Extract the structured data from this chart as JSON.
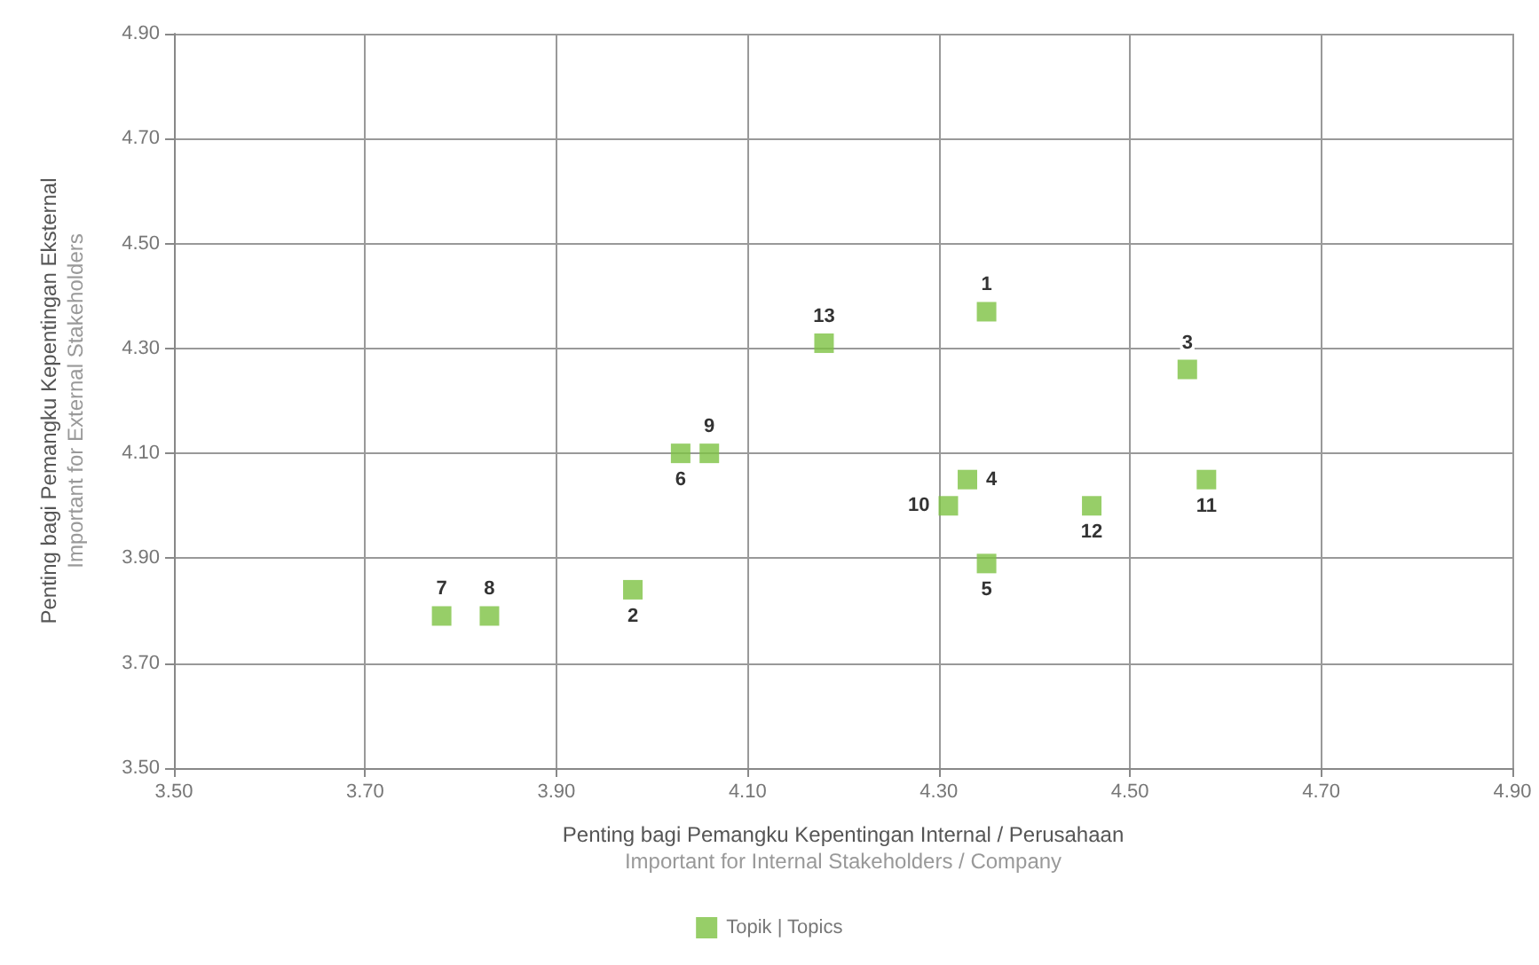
{
  "chart_data": {
    "type": "scatter",
    "xlabel": "Penting bagi Pemangku Kepentingan Internal / Perusahaan\nImportant for Internal Stakeholders / Company",
    "ylabel": "Penting bagi Pemangku Kepentingan Eksternal\nImportant for External Stakeholders",
    "series": [
      {
        "name": "Topik | Topics",
        "color": "#7dc242",
        "x": [
          4.35,
          3.98,
          4.56,
          4.33,
          4.35,
          4.03,
          3.78,
          3.83,
          4.06,
          4.31,
          4.58,
          4.46,
          4.18
        ],
        "values": [
          4.37,
          3.84,
          4.26,
          4.05,
          3.89,
          4.1,
          3.79,
          3.79,
          4.1,
          4.0,
          4.05,
          4.0,
          4.31
        ]
      }
    ],
    "annotations": [
      {
        "text": "1",
        "x": 4.35,
        "y": 4.37
      },
      {
        "text": "2",
        "x": 3.98,
        "y": 3.84
      },
      {
        "text": "3",
        "x": 4.56,
        "y": 4.26
      },
      {
        "text": "4",
        "x": 4.33,
        "y": 4.05
      },
      {
        "text": "5",
        "x": 4.35,
        "y": 3.89
      },
      {
        "text": "6",
        "x": 4.03,
        "y": 4.1
      },
      {
        "text": "7",
        "x": 3.78,
        "y": 3.79
      },
      {
        "text": "8",
        "x": 3.83,
        "y": 3.79
      },
      {
        "text": "9",
        "x": 4.06,
        "y": 4.1
      },
      {
        "text": "10",
        "x": 4.31,
        "y": 4.0
      },
      {
        "text": "11",
        "x": 4.58,
        "y": 4.05
      },
      {
        "text": "12",
        "x": 4.46,
        "y": 4.0
      },
      {
        "text": "13",
        "x": 4.18,
        "y": 4.31
      }
    ],
    "xlim": [
      3.5,
      4.9
    ],
    "xticks": [
      {
        "value": 3.5,
        "label": "3.50"
      },
      {
        "value": 3.7,
        "label": "3.70"
      },
      {
        "value": 3.9,
        "label": "3.90"
      },
      {
        "value": 4.1,
        "label": "4.10"
      },
      {
        "value": 4.3,
        "label": "4.30"
      },
      {
        "value": 4.5,
        "label": "4.50"
      },
      {
        "value": 4.7,
        "label": "4.70"
      },
      {
        "value": 4.9,
        "label": "4.90"
      }
    ],
    "ylim": [
      3.5,
      4.9
    ],
    "yticks": [
      {
        "value": 3.5,
        "label": "3.50"
      },
      {
        "value": 3.7,
        "label": "3.70"
      },
      {
        "value": 3.9,
        "label": "3.90"
      },
      {
        "value": 4.1,
        "label": "4.10"
      },
      {
        "value": 4.3,
        "label": "4.30"
      },
      {
        "value": 4.5,
        "label": "4.50"
      },
      {
        "value": 4.7,
        "label": "4.70"
      },
      {
        "value": 4.9,
        "label": "4.90"
      }
    ],
    "grid": true,
    "legend": "bottom",
    "marker": "square"
  }
}
